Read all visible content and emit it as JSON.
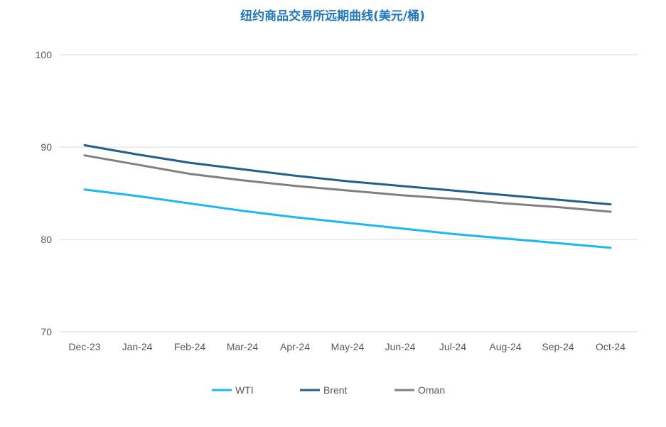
{
  "chart_data": {
    "type": "line",
    "title": "纽约商品交易所远期曲线(美元/桶)",
    "categories": [
      "Dec-23",
      "Jan-24",
      "Feb-24",
      "Mar-24",
      "Apr-24",
      "May-24",
      "Jun-24",
      "Jul-24",
      "Aug-24",
      "Sep-24",
      "Oct-24"
    ],
    "ylim": [
      70,
      100
    ],
    "yticks": [
      70,
      80,
      90,
      100
    ],
    "grid": true,
    "legend_position": "bottom",
    "series": [
      {
        "name": "WTI",
        "color": "#1AB8EF",
        "values": [
          85.4,
          84.7,
          83.9,
          83.1,
          82.4,
          81.8,
          81.2,
          80.6,
          80.1,
          79.6,
          79.1
        ]
      },
      {
        "name": "Brent",
        "color": "#215F8D",
        "values": [
          90.2,
          89.2,
          88.3,
          87.6,
          86.9,
          86.3,
          85.8,
          85.3,
          84.8,
          84.3,
          83.8
        ]
      },
      {
        "name": "Oman",
        "color": "#808080",
        "values": [
          89.1,
          88.1,
          87.1,
          86.4,
          85.8,
          85.3,
          84.8,
          84.4,
          83.9,
          83.5,
          83.0
        ]
      }
    ],
    "title_color": "#1F77C3",
    "grid_color": "#D9D9D9"
  }
}
